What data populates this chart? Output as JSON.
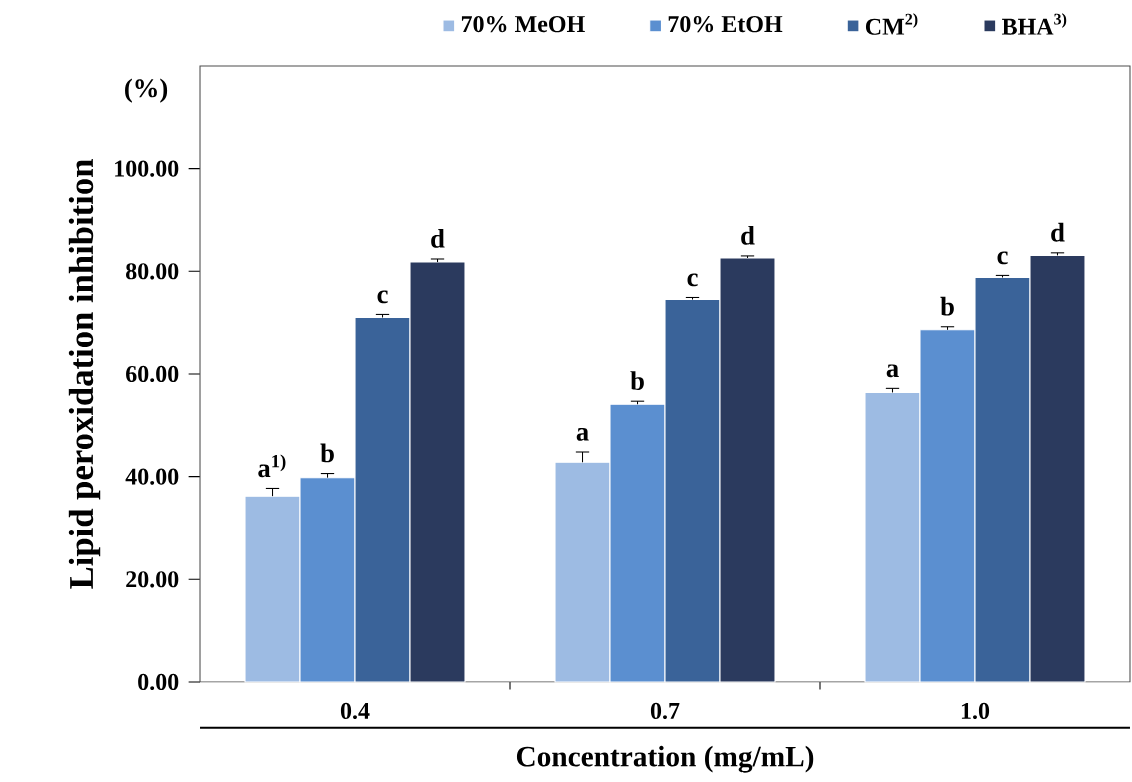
{
  "chart_data": {
    "type": "bar",
    "xlabel": "Concentration (mg/mL)",
    "ylabel": "Lipid peroxidation inhibition",
    "categories": [
      "0.4",
      "0.7",
      "1.0"
    ],
    "series": [
      {
        "name": "70% MeOH",
        "color": "#9dbbe3",
        "values": [
          36.2,
          42.8,
          56.4
        ],
        "errors": [
          1.5,
          2.0,
          0.8
        ]
      },
      {
        "name": "70% EtOH",
        "color": "#5b8fd0",
        "values": [
          39.8,
          54.1,
          68.6
        ],
        "errors": [
          0.8,
          0.6,
          0.6
        ]
      },
      {
        "name": "CM$^{2)}$",
        "color": "#3a6399",
        "values": [
          71.0,
          74.5,
          78.8
        ],
        "errors": [
          0.6,
          0.4,
          0.4
        ]
      },
      {
        "name": "BHA$^{3)}$",
        "color": "#2b3a5e",
        "values": [
          81.8,
          82.6,
          83.1
        ],
        "errors": [
          0.6,
          0.4,
          0.5
        ]
      }
    ],
    "ylim": [
      0,
      120
    ],
    "yticks": [
      {
        "value": 0,
        "label": "0.00"
      },
      {
        "value": 20,
        "label": "20.00"
      },
      {
        "value": 40,
        "label": "40.00"
      },
      {
        "value": 60,
        "label": "60.00"
      },
      {
        "value": 80,
        "label": "80.00"
      },
      {
        "value": 100,
        "label": "100.00"
      }
    ],
    "legend": "top",
    "grid": false,
    "annotations": [
      "(%)",
      {
        "text": "a$^{1)}$",
        "x": "0.4",
        "y": 36.2
      },
      {
        "text": "b",
        "x": "0.4",
        "y": 39.8
      },
      {
        "text": "c",
        "x": "0.4",
        "y": 71.0
      },
      "d",
      {
        "text": "a",
        "x": "0.7",
        "y": 42.8
      },
      {
        "text": "b",
        "x": "0.7",
        "y": 54.1
      },
      {
        "text": "c",
        "x": "0.7",
        "y": 74.5
      },
      "d",
      {
        "text": "a",
        "x": "1.0",
        "y": 56.4
      },
      {
        "text": "b",
        "x": "1.0",
        "y": 68.6
      },
      {
        "text": "c",
        "x": "1.0",
        "y": 78.8
      },
      "d"
    ]
  }
}
